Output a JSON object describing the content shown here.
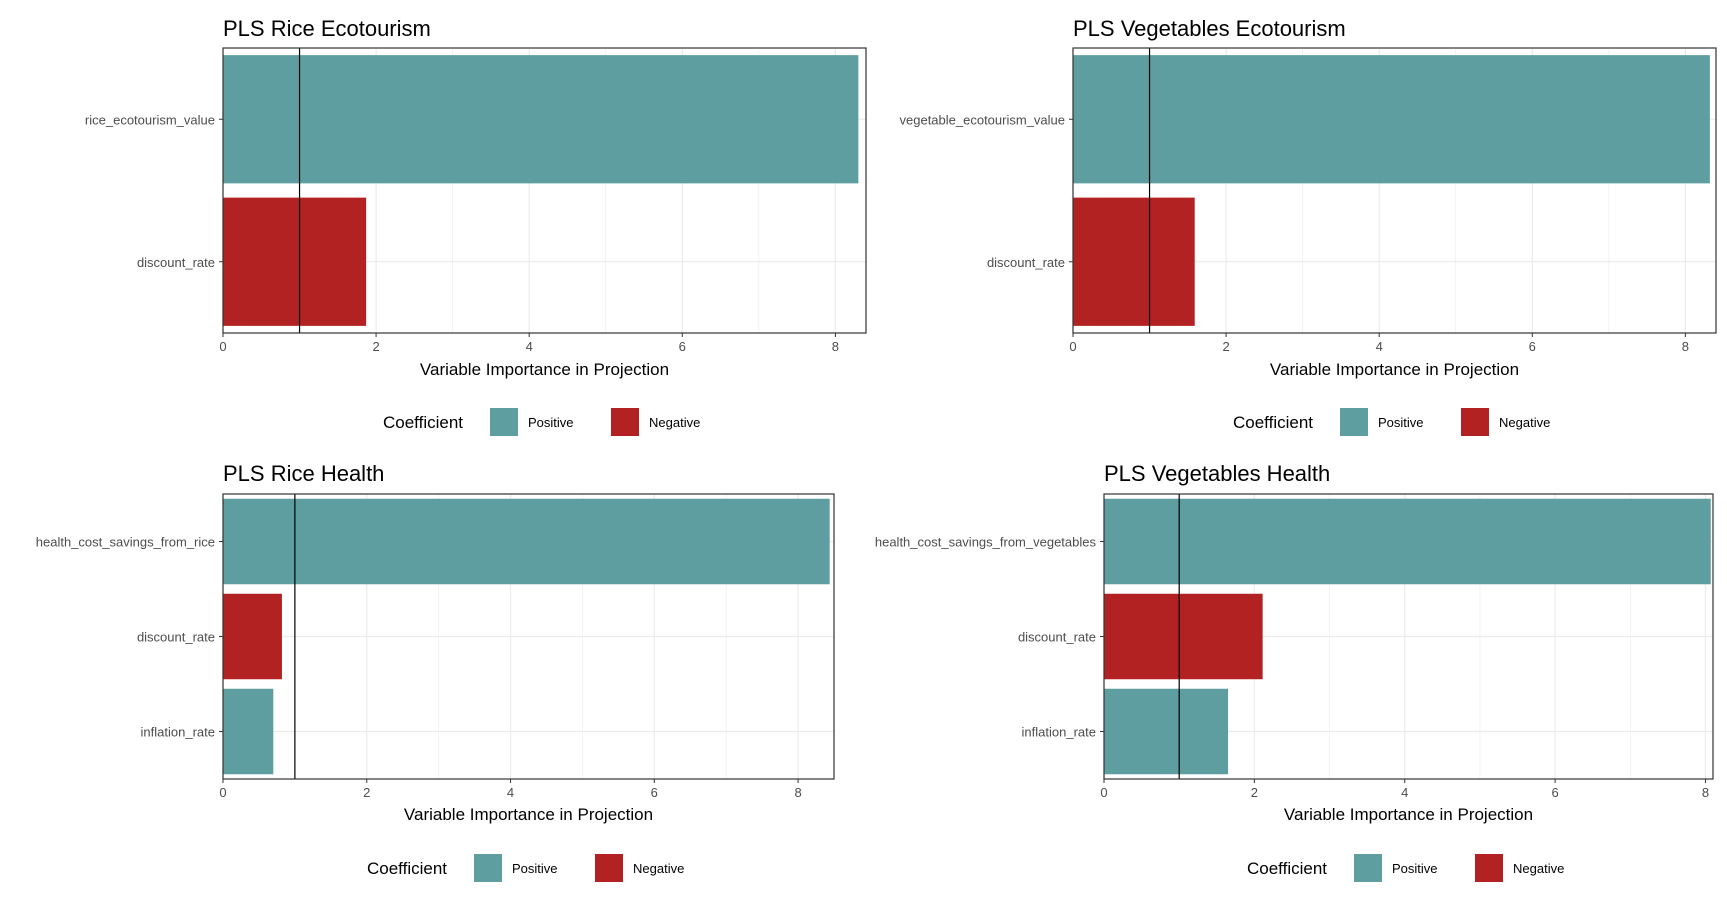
{
  "colors": {
    "positive": "#5f9ea0",
    "negative": "#b22222",
    "grid": "#ebebeb",
    "panel_border": "#333333",
    "reference_line": "#000000"
  },
  "legend": {
    "title": "Coefficient",
    "items": [
      {
        "label": "Positive",
        "color": "#5f9ea0"
      },
      {
        "label": "Negative",
        "color": "#b22222"
      }
    ]
  },
  "chart_data": [
    {
      "type": "bar",
      "orientation": "horizontal",
      "title": "PLS Rice Ecotourism",
      "xlabel": "Variable Importance in Projection",
      "ylabel": "",
      "xlim": [
        0,
        8.4
      ],
      "xticks": [
        0,
        2,
        4,
        6,
        8
      ],
      "reference_line_x": 1,
      "grid": true,
      "legend_position": "bottom",
      "categories": [
        "rice_ecotourism_value",
        "discount_rate"
      ],
      "values": [
        8.3,
        1.87
      ],
      "coefficient": [
        "Positive",
        "Negative"
      ]
    },
    {
      "type": "bar",
      "orientation": "horizontal",
      "title": "PLS Vegetables Ecotourism",
      "xlabel": "Variable Importance in Projection",
      "ylabel": "",
      "xlim": [
        0,
        8.4
      ],
      "xticks": [
        0,
        2,
        4,
        6,
        8
      ],
      "reference_line_x": 1,
      "grid": true,
      "legend_position": "bottom",
      "categories": [
        "vegetable_ecotourism_value",
        "discount_rate"
      ],
      "values": [
        8.32,
        1.59
      ],
      "coefficient": [
        "Positive",
        "Negative"
      ]
    },
    {
      "type": "bar",
      "orientation": "horizontal",
      "title": "PLS Rice Health",
      "xlabel": "Variable Importance in Projection",
      "ylabel": "",
      "xlim": [
        0,
        8.5
      ],
      "xticks": [
        0,
        2,
        4,
        6,
        8
      ],
      "reference_line_x": 1,
      "grid": true,
      "legend_position": "bottom",
      "categories": [
        "health_cost_savings_from_rice",
        "discount_rate",
        "inflation_rate"
      ],
      "values": [
        8.44,
        0.82,
        0.7
      ],
      "coefficient": [
        "Positive",
        "Negative",
        "Positive"
      ]
    },
    {
      "type": "bar",
      "orientation": "horizontal",
      "title": "PLS Vegetables Health",
      "xlabel": "Variable Importance in Projection",
      "ylabel": "",
      "xlim": [
        0,
        8.1
      ],
      "xticks": [
        0,
        2,
        4,
        6,
        8
      ],
      "reference_line_x": 1,
      "grid": true,
      "legend_position": "bottom",
      "categories": [
        "health_cost_savings_from_vegetables",
        "discount_rate",
        "inflation_rate"
      ],
      "values": [
        8.07,
        2.11,
        1.65
      ],
      "coefficient": [
        "Positive",
        "Negative",
        "Positive"
      ]
    }
  ]
}
